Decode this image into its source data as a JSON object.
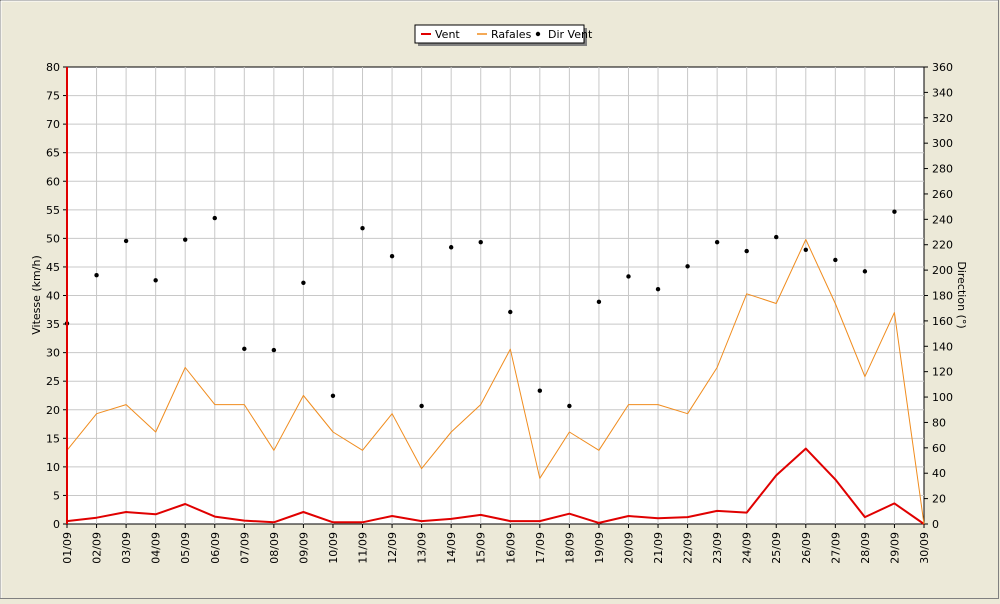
{
  "chart_data": {
    "type": "line",
    "title": "",
    "legend_position": "top-center",
    "legend": [
      {
        "name": "Vent",
        "color": "#e00000",
        "kind": "line"
      },
      {
        "name": "Rafales",
        "color": "#f08c1e",
        "kind": "line"
      },
      {
        "name": "Dir Vent",
        "color": "#000000",
        "kind": "point"
      }
    ],
    "xlabel": "",
    "ylabel": "Vitesse (km/h)",
    "y2label": "Direction (°)",
    "ylim": [
      0,
      80
    ],
    "y2lim": [
      0,
      360
    ],
    "yticks": [
      0,
      5,
      10,
      15,
      20,
      25,
      30,
      35,
      40,
      45,
      50,
      55,
      60,
      65,
      70,
      75,
      80
    ],
    "y2ticks": [
      0,
      20,
      40,
      60,
      80,
      100,
      120,
      140,
      160,
      180,
      200,
      220,
      240,
      260,
      280,
      300,
      320,
      340,
      360
    ],
    "grid": true,
    "categories": [
      "01/09",
      "02/09",
      "03/09",
      "04/09",
      "05/09",
      "06/09",
      "07/09",
      "08/09",
      "09/09",
      "10/09",
      "11/09",
      "12/09",
      "13/09",
      "14/09",
      "15/09",
      "16/09",
      "17/09",
      "18/09",
      "19/09",
      "20/09",
      "21/09",
      "22/09",
      "23/09",
      "24/09",
      "25/09",
      "26/09",
      "27/09",
      "28/09",
      "29/09",
      "30/09"
    ],
    "series": [
      {
        "name": "Vent",
        "axis": "left",
        "color": "#e00000",
        "values": [
          0.5,
          1.1,
          2.1,
          1.7,
          3.5,
          1.3,
          0.6,
          0.3,
          2.1,
          0.3,
          0.3,
          1.4,
          0.5,
          0.9,
          1.6,
          0.5,
          0.5,
          1.8,
          0.2,
          1.4,
          1.0,
          1.2,
          2.3,
          2.0,
          8.5,
          13.2,
          7.8,
          1.2,
          3.6,
          0.0
        ]
      },
      {
        "name": "Rafales",
        "axis": "left",
        "color": "#f08c1e",
        "values": [
          12.9,
          19.3,
          20.9,
          16.1,
          27.4,
          20.9,
          20.9,
          12.9,
          22.5,
          16.1,
          12.9,
          19.3,
          9.7,
          16.1,
          20.9,
          30.6,
          8.0,
          16.1,
          12.9,
          20.9,
          20.9,
          19.3,
          27.4,
          40.3,
          38.6,
          49.8,
          38.6,
          25.8,
          37.0,
          0.0
        ]
      },
      {
        "name": "Dir Vent",
        "axis": "right",
        "color": "#000000",
        "values": [
          158,
          196,
          223,
          192,
          224,
          241,
          138,
          137,
          190,
          101,
          233,
          211,
          93,
          218,
          222,
          167,
          105,
          93,
          175,
          195,
          185,
          203,
          222,
          215,
          226,
          216,
          208,
          199,
          246,
          null
        ]
      }
    ]
  }
}
